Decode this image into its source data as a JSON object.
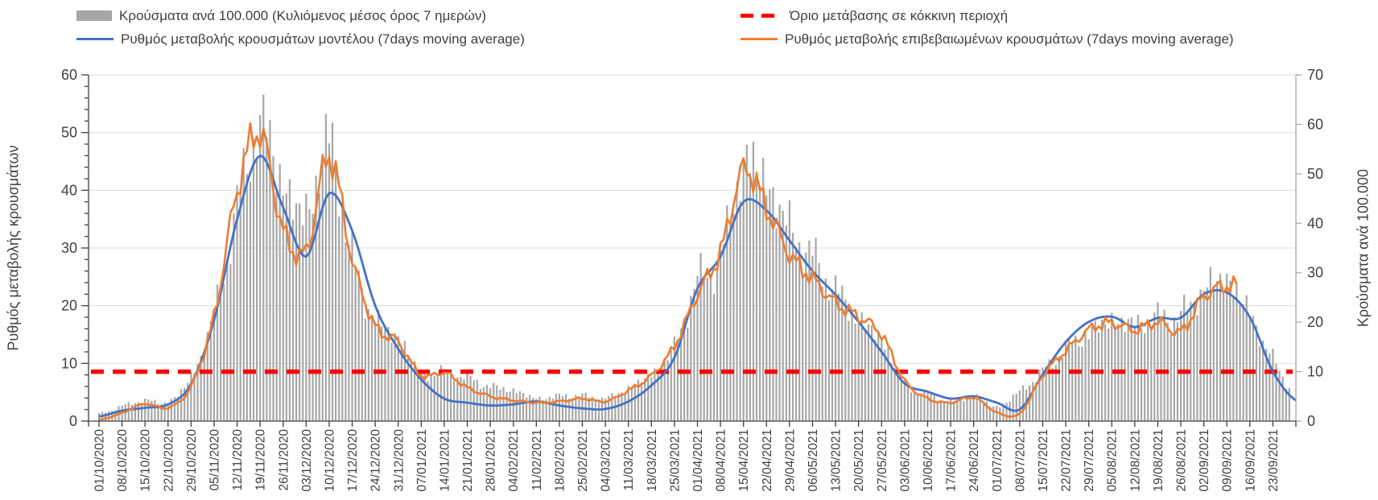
{
  "chart": {
    "legend": [
      {
        "id": "cases-bars",
        "label": "Κρούσματα ανά 100.000 (Κυλιόμενος μέσος όρος 7 ημερών)",
        "marker": "bar",
        "color": "#A6A6A6"
      },
      {
        "id": "red-threshold",
        "label": "Όριο μετάβασης σε κόκκινη περιοχή",
        "marker": "dash",
        "color": "#FF0000"
      },
      {
        "id": "model-rate",
        "label": "Ρυθμός μεταβολής κρουσμάτων μοντέλου (7days moving average)",
        "marker": "line",
        "color": "#4472C4"
      },
      {
        "id": "confirmed-rate",
        "label": "Ρυθμός μεταβολής επιβεβαιωμένων κρουσμάτων (7days moving average)",
        "marker": "line",
        "color": "#ED7D31"
      }
    ],
    "left_axis": {
      "title": "Ρυθμός μεταβολής κρουσμάτων",
      "min": 0,
      "max": 60,
      "major_step": 10,
      "minor_step": 2,
      "tick_labels": [
        "0",
        "10",
        "20",
        "30",
        "40",
        "50",
        "60"
      ]
    },
    "right_axis": {
      "title": "Κρούσματα ανά 100.000",
      "min": 0,
      "max": 70,
      "major_step": 10,
      "tick_labels": [
        "0",
        "10",
        "20",
        "30",
        "40",
        "50",
        "60",
        "70"
      ]
    },
    "colors": {
      "bars": "#A6A6A6",
      "model_line": "#4472C4",
      "confirmed_line": "#ED7D31",
      "threshold_line": "#FF0000",
      "gridline": "#DBDBDB",
      "axis_dark": "#404040",
      "axis_light": "#A8A8A8",
      "text": "#3f3f3f"
    }
  },
  "chart_data": {
    "type": "combo",
    "sampling_note": "daily bars/lines estimated; series values sampled weekly at each x tick date; 53rd value is the unlabeled chart-end anchor (~29/09/2021)",
    "x_labels": [
      "01/10/2020",
      "08/10/2020",
      "15/10/2020",
      "22/10/2020",
      "29/10/2020",
      "05/11/2020",
      "12/11/2020",
      "19/11/2020",
      "26/11/2020",
      "03/12/2020",
      "10/12/2020",
      "17/12/2020",
      "24/12/2020",
      "31/12/2020",
      "07/01/2021",
      "14/01/2021",
      "21/01/2021",
      "28/01/2021",
      "04/02/2021",
      "11/02/2021",
      "18/02/2021",
      "25/02/2021",
      "04/03/2021",
      "11/03/2021",
      "18/03/2021",
      "25/03/2021",
      "01/04/2021",
      "08/04/2021",
      "15/04/2021",
      "22/04/2021",
      "29/04/2021",
      "06/05/2021",
      "13/05/2021",
      "20/05/2021",
      "27/05/2021",
      "03/06/2021",
      "10/06/2021",
      "17/06/2021",
      "24/06/2021",
      "01/07/2021",
      "08/07/2021",
      "15/07/2021",
      "22/07/2021",
      "29/07/2021",
      "05/08/2021",
      "12/08/2021",
      "19/08/2021",
      "26/08/2021",
      "02/09/2021",
      "09/09/2021",
      "16/09/2021",
      "23/09/2021"
    ],
    "series": [
      {
        "name": "Κρούσματα ανά 100.000 (Κυλιόμενος μέσος όρος 7 ημερών)",
        "type": "bar",
        "axis": "right",
        "color": "#A6A6A6",
        "values": [
          1.5,
          3,
          4.2,
          3.9,
          9,
          21.5,
          43,
          60,
          48,
          42,
          56,
          33,
          20.5,
          17,
          9.5,
          10,
          8.7,
          7,
          6.2,
          4.6,
          5.1,
          5.1,
          4.6,
          6.7,
          9.5,
          15,
          28,
          33,
          52,
          48,
          39,
          33,
          26.5,
          20.5,
          16.5,
          7.5,
          5.5,
          3.8,
          5.1,
          2.9,
          6,
          10,
          14.6,
          17.7,
          20.3,
          19.5,
          21,
          21.4,
          26.6,
          28.5,
          21.6,
          12.5,
          5.5
        ]
      },
      {
        "name": "Ρυθμός μεταβολής κρουσμάτων μοντέλου (7days moving average)",
        "type": "line",
        "axis": "left",
        "color": "#4472C4",
        "values": [
          0.8,
          1.8,
          2.3,
          2.9,
          6.4,
          17.5,
          35,
          46,
          37,
          28.5,
          39.5,
          33,
          20,
          12.5,
          7.2,
          3.9,
          3.2,
          2.7,
          2.9,
          3.4,
          2.7,
          2.2,
          2.1,
          3.4,
          6.2,
          11,
          23,
          28.5,
          38,
          36.5,
          31.3,
          26,
          21.9,
          17.2,
          12,
          6.5,
          5.1,
          3.9,
          4.3,
          3.2,
          2,
          8.1,
          13.7,
          17.2,
          18.1,
          16.3,
          17.9,
          17.9,
          22,
          22.3,
          18,
          8.6,
          3.6
        ]
      },
      {
        "name": "Ρυθμός μεταβολής επιβεβαιωμένων κρουσμάτων (7days moving average)",
        "type": "line",
        "axis": "left",
        "color": "#ED7D31",
        "values": [
          0.2,
          1.4,
          3,
          2.3,
          6,
          18.2,
          40,
          50,
          33,
          29.5,
          46,
          28,
          16.5,
          13.7,
          7.9,
          8.4,
          5.8,
          4.3,
          3.6,
          3.2,
          3.4,
          3.9,
          3.4,
          5.3,
          7.9,
          13,
          22,
          29.3,
          43.5,
          37,
          28.9,
          24.7,
          20.5,
          18.1,
          15,
          7,
          3.9,
          3.2,
          4.1,
          1.5,
          1.3,
          7.9,
          12.1,
          15.8,
          17,
          15.8,
          17.2,
          15.5,
          21.6,
          23.5,
          null,
          null,
          null
        ]
      },
      {
        "name": "Όριο μετάβασης σε κόκκινη περιοχή",
        "type": "dashed-line",
        "axis": "right",
        "color": "#FF0000",
        "constant_value": 10
      }
    ],
    "left_ylim": [
      0,
      60
    ],
    "right_ylim": [
      0,
      70
    ],
    "grid": "horizontal-only",
    "legend_position": "top"
  }
}
